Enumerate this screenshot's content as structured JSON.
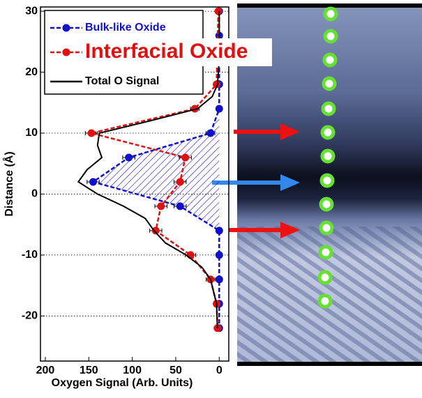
{
  "chart_data": {
    "type": "line",
    "xlabel": "Oxygen Signal (Arb. Units)",
    "ylabel": "Distance (Å)",
    "xlim": [
      205.6,
      -11
    ],
    "ylim": [
      -27.4,
      30.7
    ],
    "xticks": [
      200,
      150,
      100,
      50,
      0
    ],
    "yticks": [
      -20,
      -10,
      0,
      10,
      20,
      30
    ],
    "grid": true,
    "series": [
      {
        "name": "Bulk-like Oxide",
        "color": "#1010cc",
        "style": "dashed",
        "markers": true,
        "hatch": true,
        "y": [
          30,
          26,
          22,
          18,
          14,
          10,
          6,
          2,
          -2,
          -6,
          -10,
          -14,
          -18,
          -22
        ],
        "x": [
          0,
          0,
          0,
          0,
          0,
          10,
          104,
          145,
          45,
          0,
          0,
          0,
          0,
          0
        ],
        "xerr": [
          3,
          3,
          3,
          3,
          3,
          5,
          7,
          7,
          7,
          3,
          3,
          3,
          3,
          3
        ]
      },
      {
        "name": "Interfacial Oxide",
        "color": "#e01010",
        "style": "dashed",
        "markers": true,
        "hatch": false,
        "y": [
          30,
          18,
          14,
          10,
          6,
          2,
          -2,
          -6,
          -10,
          -14,
          -18,
          -22
        ],
        "x": [
          1,
          3,
          28,
          147,
          39,
          45,
          67,
          73,
          33,
          10,
          3,
          2
        ],
        "xerr": [
          3,
          3,
          5,
          7,
          7,
          7,
          7,
          7,
          6,
          5,
          3,
          3
        ]
      },
      {
        "name": "Total O Signal",
        "color": "#000000",
        "style": "solid",
        "markers": false,
        "hatch": false,
        "y": [
          30,
          22,
          18,
          16,
          14,
          12,
          10,
          8,
          6,
          4,
          2,
          0,
          -2,
          -4,
          -6,
          -8,
          -10,
          -12,
          -14,
          -18,
          -22
        ],
        "x": [
          0,
          0,
          2,
          8,
          25,
          80,
          138,
          140,
          135,
          152,
          162,
          140,
          110,
          85,
          75,
          62,
          38,
          20,
          10,
          3,
          2
        ]
      }
    ]
  }
}
